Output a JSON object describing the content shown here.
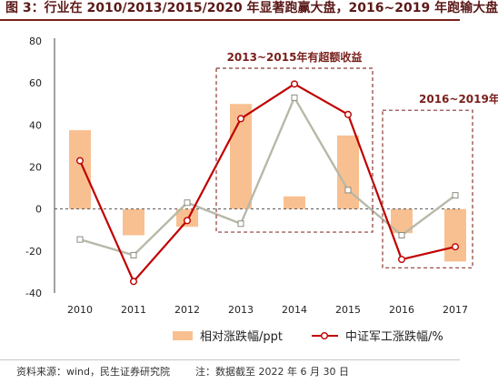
{
  "figure": {
    "title": "图 3：行业在 2010/2013/2015/2020 年显著跑赢大盘，2016~2019 年跑输大盘",
    "source": "资料来源：wind，民生证券研究院",
    "note": "注：数据截至 2022 年 6 月 30 日"
  },
  "chart_data": {
    "type": "bar+line",
    "categories": [
      "2010",
      "2011",
      "2012",
      "2013",
      "2014",
      "2015",
      "2016",
      "2017"
    ],
    "ylim": [
      -40,
      80
    ],
    "yticks": [
      -40,
      -20,
      0,
      20,
      40,
      60,
      80
    ],
    "series": [
      {
        "name": "相对涨跌幅/ppt",
        "kind": "bar",
        "color": "#f8c090",
        "values": [
          37.5,
          -12.5,
          -8.5,
          50,
          6,
          35,
          -11.5,
          -25
        ]
      },
      {
        "name": "中证军工涨跌幅/%",
        "kind": "line",
        "color": "#c00000",
        "values": [
          23,
          -34.5,
          -5.5,
          43,
          59.5,
          45,
          -24,
          -18
        ]
      },
      {
        "kind": "line",
        "color": "#b8b8a8",
        "values": [
          -14.5,
          -22,
          3,
          -7,
          53,
          9,
          -12.5,
          6.5
        ]
      }
    ],
    "annotations": [
      {
        "text": "2013~2015年有超额收益",
        "color": "#7a1f1b"
      },
      {
        "text": "2016~2019年",
        "color": "#7a1f1b"
      }
    ]
  }
}
